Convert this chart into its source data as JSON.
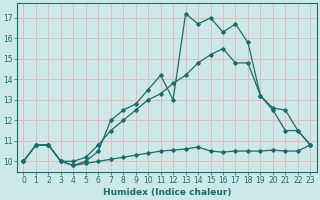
{
  "xlabel": "Humidex (Indice chaleur)",
  "bg_color": "#cce8e8",
  "line_color": "#1a6b6b",
  "grid_color": "#e8b8b8",
  "xlim": [
    -0.5,
    23.5
  ],
  "ylim": [
    9.5,
    17.7
  ],
  "yticks": [
    10,
    11,
    12,
    13,
    14,
    15,
    16,
    17
  ],
  "xticks": [
    0,
    1,
    2,
    3,
    4,
    5,
    6,
    7,
    8,
    9,
    10,
    11,
    12,
    13,
    14,
    15,
    16,
    17,
    18,
    19,
    20,
    21,
    22,
    23
  ],
  "line1_x": [
    0,
    1,
    2,
    3,
    4,
    5,
    6,
    7,
    8,
    9,
    10,
    11,
    12,
    13,
    14,
    15,
    16,
    17,
    18,
    19,
    20,
    21,
    22,
    23
  ],
  "line1_y": [
    10.0,
    10.8,
    10.8,
    10.0,
    9.8,
    9.9,
    10.0,
    10.1,
    10.2,
    10.3,
    10.4,
    10.5,
    10.55,
    10.6,
    10.7,
    10.5,
    10.45,
    10.5,
    10.5,
    10.5,
    10.55,
    10.5,
    10.5,
    10.8
  ],
  "line2_x": [
    0,
    1,
    2,
    3,
    4,
    5,
    6,
    7,
    8,
    9,
    10,
    11,
    12,
    13,
    14,
    15,
    16,
    17,
    18,
    19,
    20,
    21,
    22,
    23
  ],
  "line2_y": [
    10.0,
    10.8,
    10.8,
    10.0,
    10.0,
    10.2,
    10.8,
    11.5,
    12.0,
    12.5,
    13.0,
    13.3,
    13.8,
    14.2,
    14.8,
    15.2,
    15.5,
    14.8,
    14.8,
    13.2,
    12.6,
    12.5,
    11.5,
    10.8
  ],
  "line3_x": [
    0,
    1,
    2,
    3,
    4,
    5,
    6,
    7,
    8,
    9,
    10,
    11,
    12,
    13,
    14,
    15,
    16,
    17,
    18,
    19,
    20,
    21,
    22,
    23
  ],
  "line3_y": [
    10.0,
    10.8,
    10.8,
    10.0,
    9.8,
    10.0,
    10.5,
    12.0,
    12.5,
    12.8,
    13.5,
    14.2,
    13.0,
    17.2,
    16.7,
    17.0,
    16.3,
    16.7,
    15.8,
    13.2,
    12.5,
    11.5,
    11.5,
    10.8
  ]
}
